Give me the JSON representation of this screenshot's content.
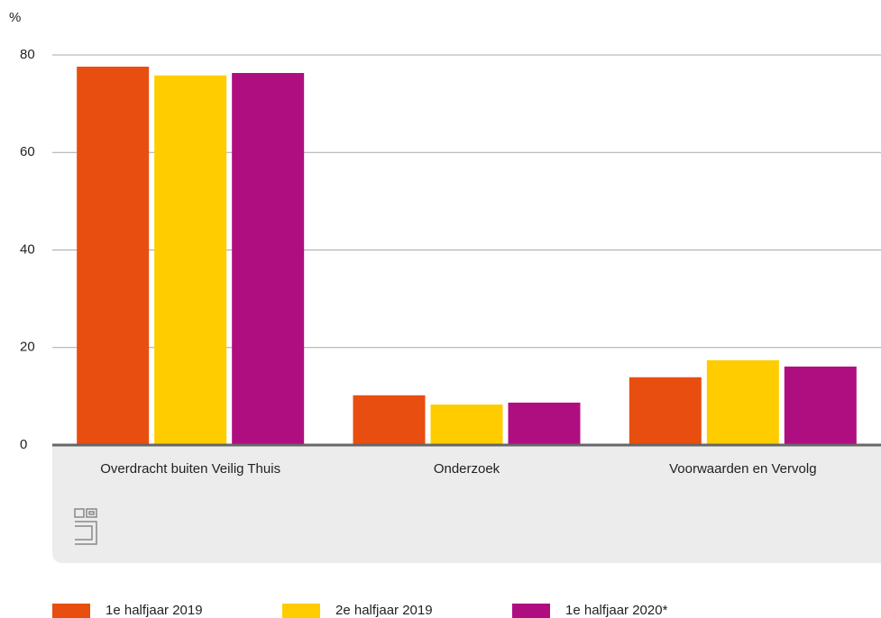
{
  "chart_data": {
    "type": "bar",
    "y_label": "%",
    "categories": [
      "Overdracht buiten Veilig Thuis",
      "Onderzoek",
      "Voorwaarden en Vervolg"
    ],
    "series": [
      {
        "name": "1e halfjaar 2019",
        "color": "#e84e0f",
        "values": [
          77.6,
          10.2,
          13.9
        ]
      },
      {
        "name": "2e halfjaar 2019",
        "color": "#ffcc00",
        "values": [
          75.8,
          8.3,
          17.4
        ]
      },
      {
        "name": "1e halfjaar 2020*",
        "color": "#af0e80",
        "values": [
          76.3,
          8.7,
          16.1
        ]
      }
    ],
    "ylim": [
      0,
      80
    ],
    "yticks": [
      0,
      20,
      40,
      60,
      80
    ],
    "grid": true,
    "legend": "bottom"
  }
}
